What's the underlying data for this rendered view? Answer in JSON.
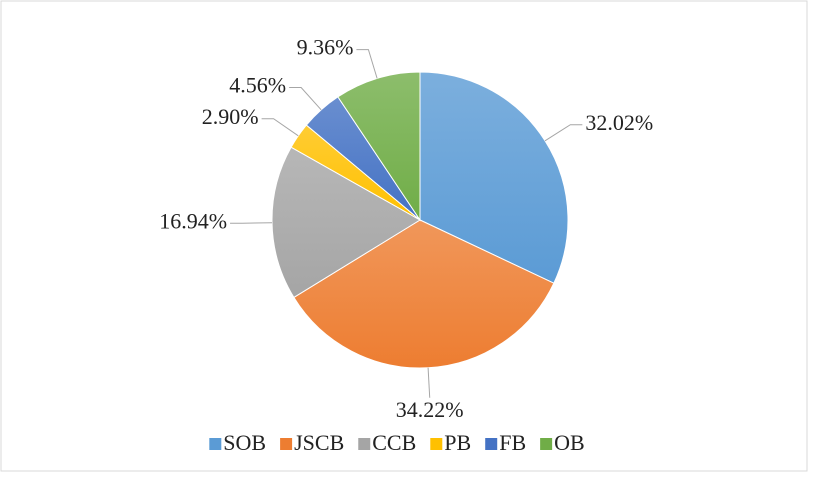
{
  "chart_data": {
    "type": "pie",
    "categories": [
      "SOB",
      "JSCB",
      "CCB",
      "PB",
      "FB",
      "OB"
    ],
    "values": [
      32.02,
      34.22,
      16.94,
      2.9,
      4.56,
      9.36
    ],
    "value_labels": [
      "32.02%",
      "34.22%",
      "16.94%",
      "2.90%",
      "4.56%",
      "9.36%"
    ],
    "colors": [
      "#5b9bd5",
      "#ed7d31",
      "#a5a5a5",
      "#ffc000",
      "#4472c4",
      "#70ad47"
    ],
    "legend": "bottom"
  }
}
